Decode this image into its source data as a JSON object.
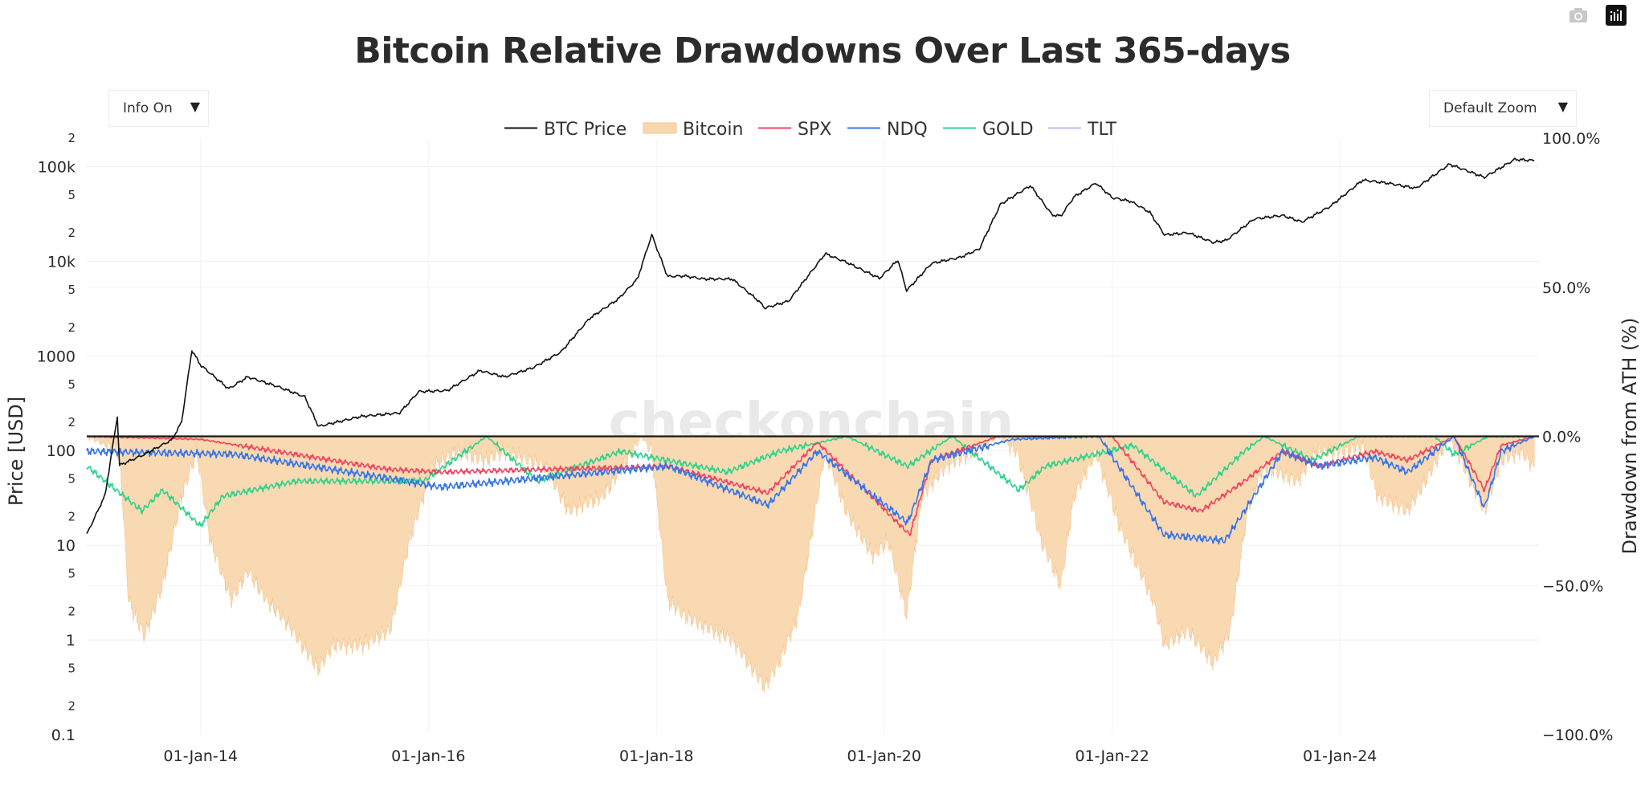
{
  "title": "Bitcoin Relative Drawdowns Over Last 365-days",
  "controls": {
    "info_dropdown": "Info On",
    "zoom_dropdown": "Default Zoom",
    "caret": "▼"
  },
  "modebar": {
    "icons": [
      "camera-icon",
      "plotly-logo-icon"
    ]
  },
  "watermark": "checkonchain",
  "colors": {
    "btc_price": "#111111",
    "bitcoin_fill": "#f9d7ae",
    "bitcoin_line": "#f6c48d",
    "spx": "#f0435f",
    "ndq": "#3575ea",
    "gold": "#2fd38c",
    "tlt": "#c6b8ee",
    "zero_line": "#1a1a1a",
    "grid": "#eeeeee"
  },
  "chart_data": {
    "type": "line",
    "title": "Bitcoin Relative Drawdowns Over Last 365-days",
    "ylabel": "Price [USD]",
    "y2label": "Drawdown from ATH (%)",
    "legend_position": "top-center",
    "grid": true,
    "x_ticks": [
      "01-Jan-14",
      "01-Jan-16",
      "01-Jan-18",
      "01-Jan-20",
      "01-Jan-22",
      "01-Jan-24"
    ],
    "y_ticks": [
      "2",
      "100k",
      "5",
      "2",
      "10k",
      "5",
      "2",
      "1000",
      "5",
      "2",
      "100",
      "5",
      "2",
      "10",
      "5",
      "2",
      "1",
      "5",
      "2",
      "0.1"
    ],
    "y2_ticks": [
      "100.0%",
      "50.0%",
      "0.0%",
      "−50.0%",
      "−100.0%"
    ],
    "y_log_scale": true,
    "ylim": [
      0.1,
      200000
    ],
    "y2lim": [
      -100,
      100
    ],
    "xlim": [
      "2013-01-01",
      "2025-09-30"
    ],
    "series": [
      {
        "name": "BTC Price",
        "axis": "price_usd",
        "style": "line",
        "x": [
          "2013-01-01",
          "2013-03-01",
          "2013-04-09",
          "2013-04-16",
          "2013-07-01",
          "2013-10-01",
          "2013-11-01",
          "2013-12-04",
          "2014-01-01",
          "2014-04-01",
          "2014-06-01",
          "2014-09-01",
          "2014-12-01",
          "2015-01-14",
          "2015-06-01",
          "2015-10-01",
          "2015-12-01",
          "2016-03-01",
          "2016-06-15",
          "2016-09-01",
          "2016-12-01",
          "2017-03-01",
          "2017-06-01",
          "2017-09-01",
          "2017-11-01",
          "2017-12-17",
          "2018-02-06",
          "2018-04-01",
          "2018-06-01",
          "2018-09-01",
          "2018-11-25",
          "2018-12-15",
          "2019-03-01",
          "2019-06-26",
          "2019-09-01",
          "2019-12-17",
          "2020-02-14",
          "2020-03-13",
          "2020-06-01",
          "2020-09-01",
          "2020-11-01",
          "2021-01-08",
          "2021-04-14",
          "2021-06-22",
          "2021-07-20",
          "2021-09-01",
          "2021-11-10",
          "2022-01-01",
          "2022-03-01",
          "2022-05-01",
          "2022-06-18",
          "2022-09-01",
          "2022-11-21",
          "2023-01-01",
          "2023-04-01",
          "2023-07-01",
          "2023-09-01",
          "2023-12-01",
          "2024-03-14",
          "2024-06-01",
          "2024-09-01",
          "2024-12-17",
          "2025-03-01",
          "2025-04-08",
          "2025-07-14",
          "2025-09-15"
        ],
        "values": [
          13,
          34,
          230,
          70,
          90,
          130,
          200,
          1150,
          800,
          450,
          600,
          480,
          370,
          180,
          230,
          250,
          420,
          430,
          700,
          600,
          750,
          1100,
          2500,
          4000,
          6500,
          19000,
          6900,
          7000,
          6500,
          6500,
          3800,
          3200,
          3800,
          12000,
          9800,
          6600,
          10300,
          4900,
          9500,
          11000,
          13500,
          40000,
          63000,
          31000,
          30000,
          48000,
          67000,
          47000,
          43000,
          33000,
          19000,
          20000,
          15800,
          16600,
          28000,
          30500,
          26000,
          38000,
          72000,
          67000,
          59000,
          106000,
          86000,
          77000,
          119000,
          116000
        ]
      },
      {
        "name": "Bitcoin",
        "axis": "drawdown_pct",
        "style": "area",
        "x": [
          "2013-01-01",
          "2013-04-16",
          "2013-05-15",
          "2013-07-05",
          "2013-09-01",
          "2013-11-01",
          "2013-12-20",
          "2014-02-01",
          "2014-04-10",
          "2014-06-01",
          "2014-08-01",
          "2014-10-01",
          "2015-01-14",
          "2015-03-01",
          "2015-06-01",
          "2015-09-01",
          "2015-11-01",
          "2016-01-15",
          "2016-04-01",
          "2016-07-01",
          "2016-09-01",
          "2017-01-10",
          "2017-03-25",
          "2017-07-15",
          "2017-09-15",
          "2017-11-15",
          "2017-12-17",
          "2018-02-06",
          "2018-04-01",
          "2018-06-29",
          "2018-09-01",
          "2018-12-15",
          "2019-02-01",
          "2019-04-01",
          "2019-06-26",
          "2019-09-01",
          "2019-11-25",
          "2020-01-15",
          "2020-03-13",
          "2020-05-01",
          "2020-07-15",
          "2020-10-15",
          "2021-01-01",
          "2021-03-01",
          "2021-05-19",
          "2021-07-20",
          "2021-09-01",
          "2021-11-10",
          "2022-01-24",
          "2022-05-12",
          "2022-06-18",
          "2022-09-01",
          "2022-11-21",
          "2023-01-15",
          "2023-03-10",
          "2023-05-01",
          "2023-08-17",
          "2023-10-15",
          "2024-01-01",
          "2024-03-14",
          "2024-05-01",
          "2024-08-05",
          "2024-10-01",
          "2024-12-17",
          "2025-02-01",
          "2025-04-08",
          "2025-06-01",
          "2025-08-01",
          "2025-09-15"
        ],
        "values": [
          0,
          -5,
          -55,
          -67,
          -50,
          -20,
          -5,
          -35,
          -55,
          -45,
          -55,
          -62,
          -78,
          -70,
          -70,
          -65,
          -35,
          -10,
          -5,
          -8,
          -5,
          -10,
          -25,
          -20,
          -10,
          0,
          -5,
          -55,
          -60,
          -65,
          -68,
          -84,
          -75,
          -60,
          -5,
          -25,
          -40,
          -35,
          -60,
          -20,
          -10,
          -5,
          0,
          -5,
          -35,
          -50,
          -20,
          -5,
          -30,
          -55,
          -70,
          -65,
          -76,
          -65,
          -25,
          -10,
          -15,
          -5,
          -5,
          -3,
          -20,
          -25,
          -15,
          0,
          -10,
          -25,
          -8,
          -5,
          -10
        ]
      },
      {
        "name": "SPX",
        "axis": "drawdown_pct",
        "style": "line",
        "x": [
          "2013-01-01",
          "2014-01-01",
          "2015-08-24",
          "2016-02-11",
          "2018-02-08",
          "2018-12-24",
          "2019-06-01",
          "2020-03-23",
          "2020-06-01",
          "2021-01-01",
          "2022-01-01",
          "2022-06-16",
          "2022-10-12",
          "2023-03-01",
          "2023-07-01",
          "2023-10-27",
          "2024-04-19",
          "2024-08-05",
          "2025-01-01",
          "2025-04-08",
          "2025-06-01",
          "2025-09-15"
        ],
        "values": [
          0,
          -1,
          -11,
          -12,
          -10,
          -19,
          -2,
          -33,
          -8,
          0,
          0,
          -22,
          -25,
          -15,
          -5,
          -10,
          -5,
          -8,
          0,
          -18,
          -3,
          0
        ]
      },
      {
        "name": "NDQ",
        "axis": "drawdown_pct",
        "style": "line",
        "x": [
          "2013-01-01",
          "2014-04-15",
          "2015-08-24",
          "2016-02-09",
          "2018-02-08",
          "2018-12-24",
          "2019-06-01",
          "2020-03-16",
          "2020-06-01",
          "2021-02-15",
          "2021-11-19",
          "2022-06-16",
          "2022-12-28",
          "2023-03-01",
          "2023-07-01",
          "2023-10-26",
          "2024-04-19",
          "2024-08-05",
          "2025-01-01",
          "2025-04-08",
          "2025-06-01",
          "2025-09-15"
        ],
        "values": [
          -5,
          -6,
          -14,
          -17,
          -10,
          -23,
          -5,
          -29,
          -8,
          -1,
          0,
          -33,
          -35,
          -25,
          -5,
          -10,
          -7,
          -12,
          0,
          -24,
          -5,
          0
        ]
      },
      {
        "name": "GOLD",
        "axis": "drawdown_pct",
        "style": "line",
        "x": [
          "2013-01-01",
          "2013-06-27",
          "2013-09-01",
          "2013-12-31",
          "2014-03-14",
          "2014-11-05",
          "2015-12-17",
          "2016-07-06",
          "2016-12-15",
          "2017-09-08",
          "2018-08-16",
          "2019-02-01",
          "2019-09-04",
          "2020-03-16",
          "2020-08-06",
          "2021-03-08",
          "2021-06-01",
          "2022-03-08",
          "2022-09-28",
          "2023-02-28",
          "2023-05-04",
          "2023-10-05",
          "2024-03-01",
          "2024-10-30",
          "2025-01-01",
          "2025-04-21",
          "2025-09-15"
        ],
        "values": [
          -10,
          -25,
          -18,
          -30,
          -20,
          -15,
          -15,
          0,
          -15,
          -5,
          -12,
          -5,
          0,
          -10,
          0,
          -18,
          -10,
          -3,
          -20,
          -5,
          0,
          -8,
          0,
          0,
          -6,
          0,
          0
        ]
      },
      {
        "name": "TLT",
        "axis": "drawdown_pct",
        "style": "line",
        "x": [],
        "values": []
      }
    ]
  }
}
